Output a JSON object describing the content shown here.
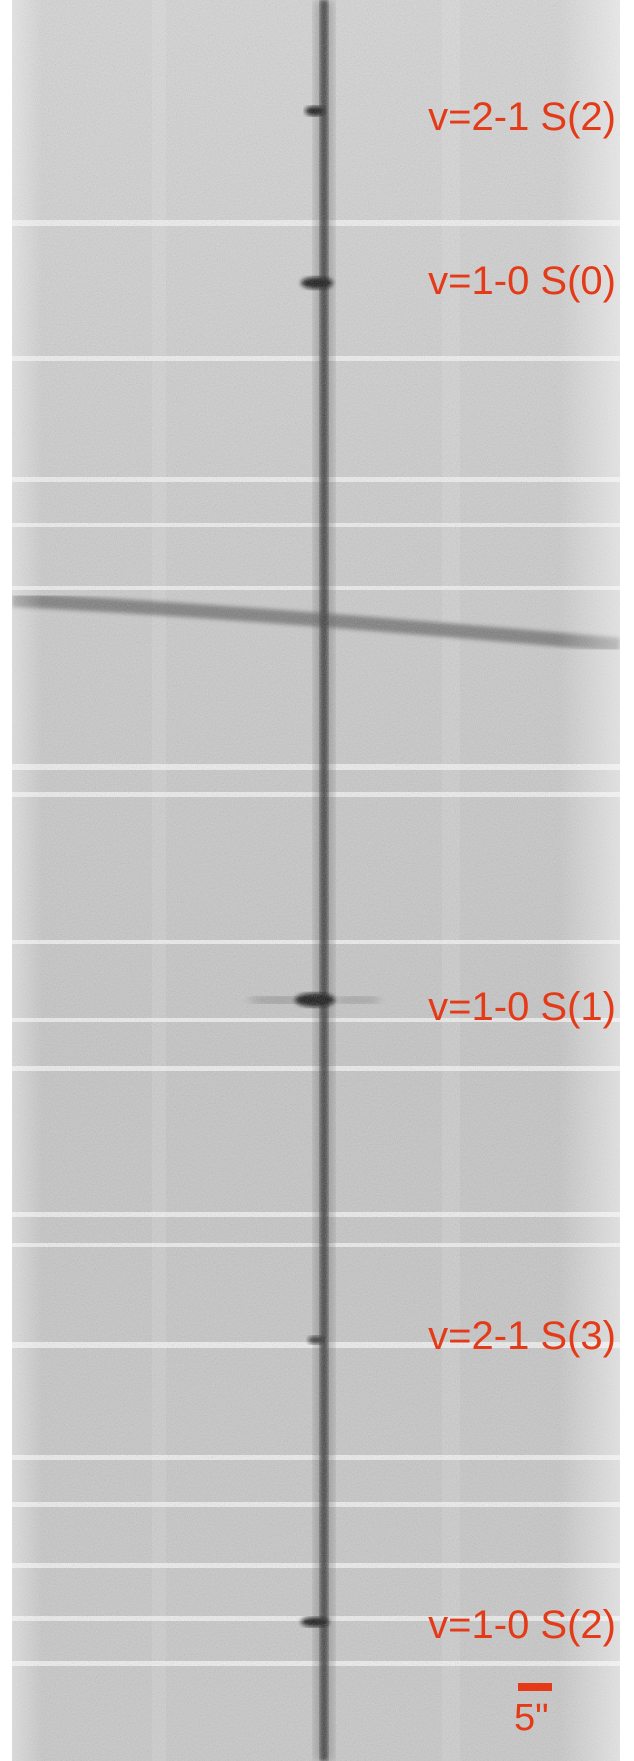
{
  "image": {
    "labels": [
      "v=2-1 S(2)",
      "v=1-0 S(0)",
      "v=1-0 S(1)",
      "v=2-1 S(3)",
      "v=1-0 S(2)"
    ],
    "scale_label": "5\""
  },
  "colors": {
    "label": "#e53a18",
    "background": "#c9c9c9",
    "trace": "#222222"
  }
}
